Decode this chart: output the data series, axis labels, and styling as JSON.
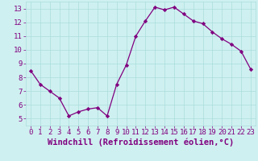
{
  "x": [
    0,
    1,
    2,
    3,
    4,
    5,
    6,
    7,
    8,
    9,
    10,
    11,
    12,
    13,
    14,
    15,
    16,
    17,
    18,
    19,
    20,
    21,
    22,
    23
  ],
  "y": [
    8.5,
    7.5,
    7.0,
    6.5,
    5.2,
    5.5,
    5.7,
    5.8,
    5.2,
    7.5,
    8.9,
    11.0,
    12.1,
    13.1,
    12.9,
    13.1,
    12.6,
    12.1,
    11.9,
    11.3,
    10.8,
    10.4,
    9.9,
    8.6
  ],
  "line_color": "#800080",
  "marker": "D",
  "marker_size": 2.2,
  "bg_color": "#cff0f0",
  "grid_color": "#aadddd",
  "axis_color": "#800080",
  "xlabel": "Windchill (Refroidissement éolien,°C)",
  "ylim": [
    4.5,
    13.5
  ],
  "xlim": [
    -0.5,
    23.5
  ],
  "yticks": [
    5,
    6,
    7,
    8,
    9,
    10,
    11,
    12,
    13
  ],
  "xticks": [
    0,
    1,
    2,
    3,
    4,
    5,
    6,
    7,
    8,
    9,
    10,
    11,
    12,
    13,
    14,
    15,
    16,
    17,
    18,
    19,
    20,
    21,
    22,
    23
  ],
  "tick_labelsize": 6.5,
  "xlabel_fontsize": 7.5
}
